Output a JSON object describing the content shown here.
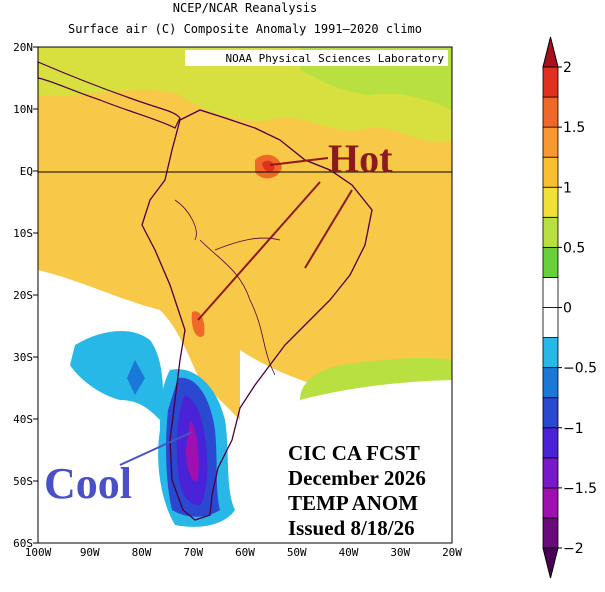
{
  "header": {
    "title": "NCEP/NCAR Reanalysis",
    "subtitle": "Surface air (C) Composite Anomaly 1991–2020 climo",
    "credit": "NOAA Physical Sciences Laboratory"
  },
  "map": {
    "lat_labels": [
      "20N",
      "10N",
      "EQ",
      "10S",
      "20S",
      "30S",
      "40S",
      "50S",
      "60S"
    ],
    "lon_labels": [
      "100W",
      "90W",
      "80W",
      "70W",
      "60W",
      "50W",
      "40W",
      "30W",
      "20W"
    ],
    "hot_label": "Hot",
    "cool_label": "Cool",
    "forecast_note": [
      "CIC CA FCST",
      "December 2026",
      "TEMP ANOM",
      "Issued 8/18/26"
    ]
  },
  "colorbar": {
    "levels": [
      -2,
      -1.75,
      -1.5,
      -1.25,
      -1,
      -0.75,
      -0.5,
      -0.25,
      0,
      0.25,
      0.5,
      0.75,
      1,
      1.25,
      1.5,
      1.75,
      2
    ],
    "colors": [
      "#6a0a7a",
      "#a010b0",
      "#7818c8",
      "#4a22d8",
      "#2a48d0",
      "#1a78d8",
      "#28b8e8",
      "#ffffff",
      "#ffffff",
      "#68d038",
      "#b8e040",
      "#f0e038",
      "#f8c030",
      "#f89830",
      "#f06828",
      "#e03020"
    ],
    "under_color": "#4a0058",
    "over_color": "#a8101c",
    "ticks": [
      2,
      1.5,
      1,
      0.5,
      0,
      {
        "value": -0.5,
        "label": "−0.5"
      },
      {
        "value": -1,
        "label": "−1"
      },
      {
        "value": -1.5,
        "label": "−1.5"
      },
      {
        "value": -2,
        "label": "−2"
      }
    ]
  }
}
